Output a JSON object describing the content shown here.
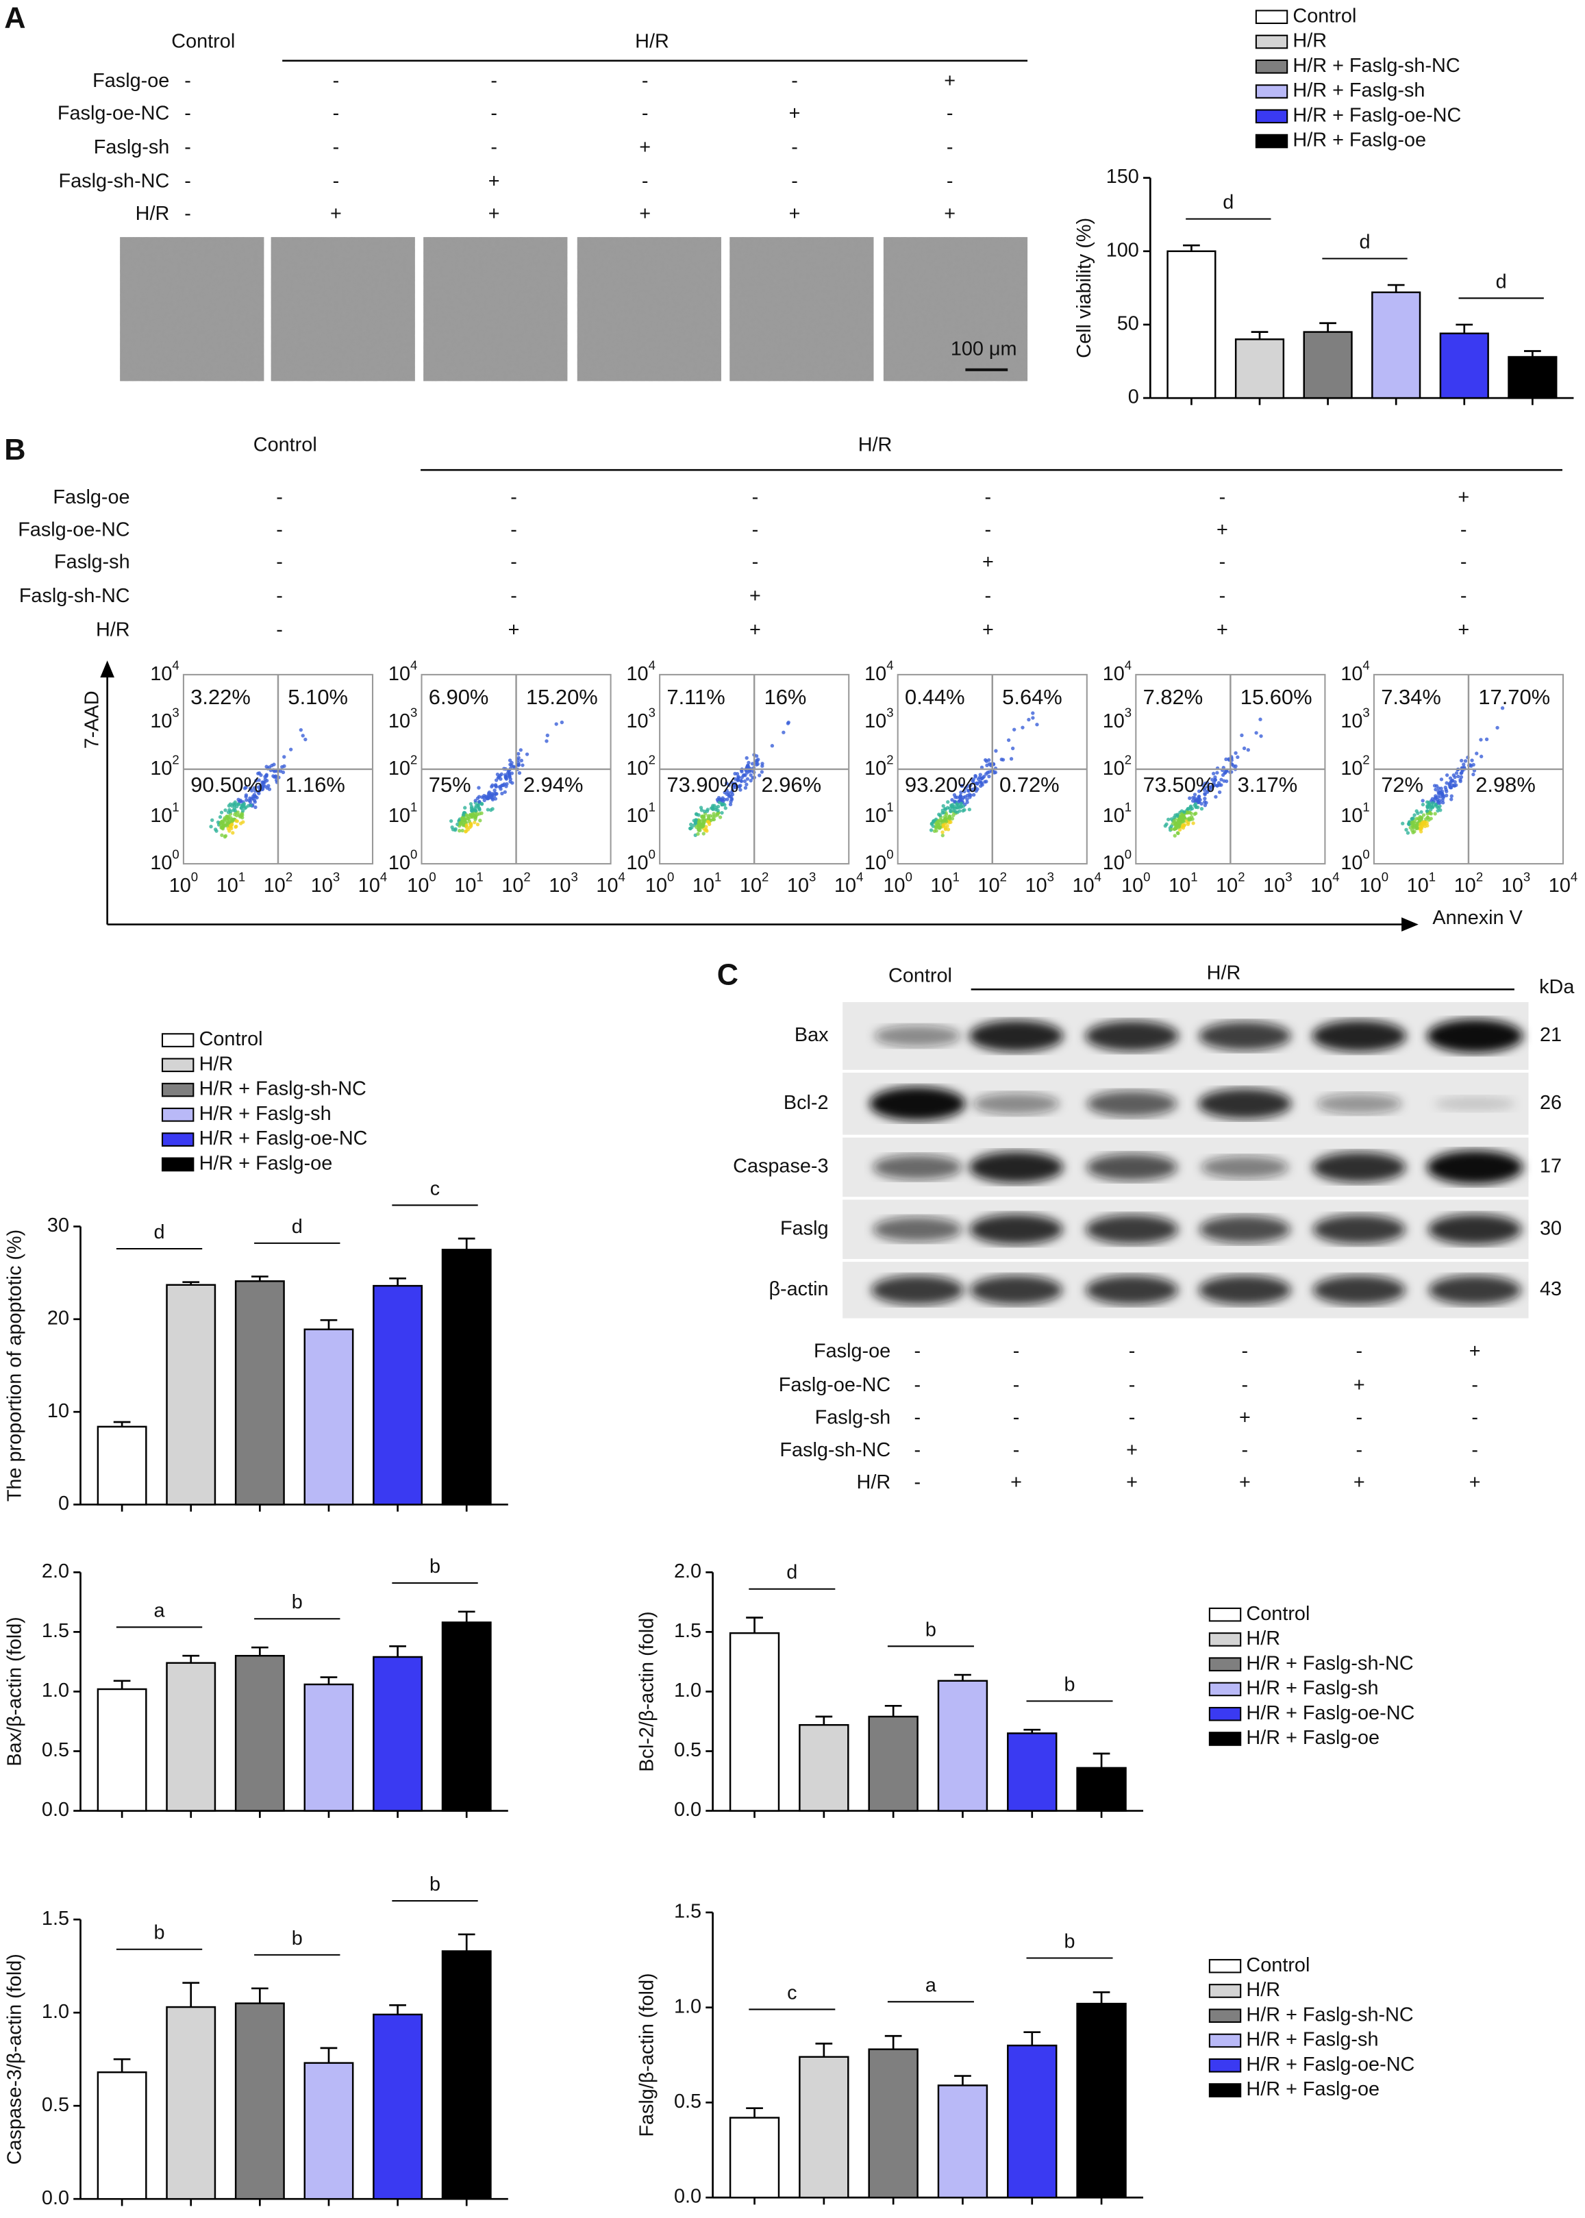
{
  "panel_a": {
    "label": "A",
    "treatment": {
      "groups": [
        "Control",
        "H/R"
      ],
      "rows": [
        {
          "label": "Faslg-oe",
          "signs": [
            "-",
            "-",
            "-",
            "-",
            "-",
            "+"
          ]
        },
        {
          "label": "Faslg-oe-NC",
          "signs": [
            "-",
            "-",
            "-",
            "-",
            "+",
            "-"
          ]
        },
        {
          "label": "Faslg-sh",
          "signs": [
            "-",
            "-",
            "-",
            "+",
            "-",
            "-"
          ]
        },
        {
          "label": "Faslg-sh-NC",
          "signs": [
            "-",
            "-",
            "+",
            "-",
            "-",
            "-"
          ]
        },
        {
          "label": "H/R",
          "signs": [
            "-",
            "+",
            "+",
            "+",
            "+",
            "+"
          ]
        }
      ]
    },
    "scale_bar": "100 μm"
  },
  "panel_b": {
    "label": "B",
    "treatment": {
      "groups": [
        "Control",
        "H/R"
      ],
      "rows": [
        {
          "label": "Faslg-oe",
          "signs": [
            "-",
            "-",
            "-",
            "-",
            "-",
            "+"
          ]
        },
        {
          "label": "Faslg-oe-NC",
          "signs": [
            "-",
            "-",
            "-",
            "-",
            "+",
            "-"
          ]
        },
        {
          "label": "Faslg-sh",
          "signs": [
            "-",
            "-",
            "-",
            "+",
            "-",
            "-"
          ]
        },
        {
          "label": "Faslg-sh-NC",
          "signs": [
            "-",
            "-",
            "+",
            "-",
            "-",
            "-"
          ]
        },
        {
          "label": "H/R",
          "signs": [
            "-",
            "+",
            "+",
            "+",
            "+",
            "+"
          ]
        }
      ]
    },
    "flow": {
      "y_axis": "7-AAD",
      "x_axis": "Annexin V",
      "base": "10",
      "exponents": [
        "0",
        "1",
        "2",
        "3",
        "4"
      ],
      "plots": [
        [
          "3.22%",
          "5.10%",
          "90.50%",
          "1.16%"
        ],
        [
          "6.90%",
          "15.20%",
          "75%",
          "2.94%"
        ],
        [
          "7.11%",
          "16%",
          "73.90%",
          "2.96%"
        ],
        [
          "0.44%",
          "5.64%",
          "93.20%",
          "0.72%"
        ],
        [
          "7.82%",
          "15.60%",
          "73.50%",
          "3.17%"
        ],
        [
          "7.34%",
          "17.70%",
          "72%",
          "2.98%"
        ]
      ]
    }
  },
  "panel_c": {
    "label": "C",
    "groups": [
      "Control",
      "H/R"
    ],
    "unit": "kDa",
    "rows": [
      {
        "label": "Bax",
        "kda": "21"
      },
      {
        "label": "Bcl-2",
        "kda": "26"
      },
      {
        "label": "Caspase-3",
        "kda": "17"
      },
      {
        "label": "Faslg",
        "kda": "30"
      },
      {
        "label": "β-actin",
        "kda": "43"
      }
    ],
    "treatment": {
      "rows": [
        {
          "label": "Faslg-oe",
          "signs": [
            "-",
            "-",
            "-",
            "-",
            "-",
            "+"
          ]
        },
        {
          "label": "Faslg-oe-NC",
          "signs": [
            "-",
            "-",
            "-",
            "-",
            "+",
            "-"
          ]
        },
        {
          "label": "Faslg-sh",
          "signs": [
            "-",
            "-",
            "-",
            "+",
            "-",
            "-"
          ]
        },
        {
          "label": "Faslg-sh-NC",
          "signs": [
            "-",
            "-",
            "+",
            "-",
            "-",
            "-"
          ]
        },
        {
          "label": "H/R",
          "signs": [
            "-",
            "+",
            "+",
            "+",
            "+",
            "+"
          ]
        }
      ]
    }
  },
  "chart_data": [
    {
      "type": "bar",
      "ylabel": "Cell viability (%)",
      "legend": true,
      "categories": [
        "Control",
        "H/R",
        "H/R + Faslg-sh-NC",
        "H/R + Faslg-sh",
        "H/R + Faslg-oe-NC",
        "H/R + Faslg-oe"
      ],
      "colors": [
        "#ffffff",
        "#d4d4d4",
        "#7f7f7f",
        "#b9b9f7",
        "#3a3af2",
        "#000000"
      ],
      "values": [
        100,
        40,
        45,
        72,
        44,
        28
      ],
      "errors": [
        4,
        5,
        6,
        5,
        6,
        4
      ],
      "ylim": [
        0,
        150
      ],
      "yticks": [
        0,
        50,
        100,
        150
      ],
      "brackets": [
        {
          "label": "d",
          "between": [
            0,
            1
          ]
        },
        {
          "label": "d",
          "between": [
            2,
            3
          ]
        },
        {
          "label": "d",
          "between": [
            4,
            5
          ]
        }
      ]
    },
    {
      "type": "bar",
      "ylabel": "The proportion of apoptotic (%)",
      "legend": true,
      "categories": [
        "Control",
        "H/R",
        "H/R + Faslg-sh-NC",
        "H/R + Faslg-sh",
        "H/R + Faslg-oe-NC",
        "H/R + Faslg-oe"
      ],
      "colors": [
        "#ffffff",
        "#d4d4d4",
        "#7f7f7f",
        "#b9b9f7",
        "#3a3af2",
        "#000000"
      ],
      "values": [
        8.4,
        23.7,
        24.1,
        18.9,
        23.6,
        27.5
      ],
      "errors": [
        0.5,
        0.3,
        0.5,
        1,
        0.8,
        1.2
      ],
      "ylim": [
        0,
        30
      ],
      "yticks": [
        0,
        10,
        20,
        30
      ],
      "brackets": [
        {
          "label": "d",
          "between": [
            0,
            1
          ]
        },
        {
          "label": "d",
          "between": [
            2,
            3
          ]
        },
        {
          "label": "c",
          "between": [
            4,
            5
          ]
        }
      ]
    },
    {
      "type": "bar",
      "ylabel": "Bax/β-actin (fold)",
      "colors": [
        "#ffffff",
        "#d4d4d4",
        "#7f7f7f",
        "#b9b9f7",
        "#3a3af2",
        "#000000"
      ],
      "values": [
        1.02,
        1.24,
        1.3,
        1.06,
        1.29,
        1.58
      ],
      "errors": [
        0.07,
        0.06,
        0.07,
        0.06,
        0.09,
        0.09
      ],
      "ylim": [
        0,
        2
      ],
      "yticks": [
        {
          "value": 0,
          "label": "0.0"
        },
        0.5,
        {
          "value": 1,
          "label": "1.0"
        },
        1.5,
        {
          "value": 2,
          "label": "2.0"
        }
      ],
      "brackets": [
        {
          "label": "a",
          "between": [
            0,
            1
          ]
        },
        {
          "label": "b",
          "between": [
            2,
            3
          ]
        },
        {
          "label": "b",
          "between": [
            4,
            5
          ]
        }
      ]
    },
    {
      "type": "bar",
      "ylabel": "Bcl-2/β-actin (fold)",
      "legend": true,
      "categories": [
        "Control",
        "H/R",
        "H/R + Faslg-sh-NC",
        "H/R + Faslg-sh",
        "H/R + Faslg-oe-NC",
        "H/R + Faslg-oe"
      ],
      "colors": [
        "#ffffff",
        "#d4d4d4",
        "#7f7f7f",
        "#b9b9f7",
        "#3a3af2",
        "#000000"
      ],
      "values": [
        1.49,
        0.72,
        0.79,
        1.09,
        0.65,
        0.36
      ],
      "errors": [
        0.13,
        0.07,
        0.09,
        0.05,
        0.03,
        0.12
      ],
      "ylim": [
        0,
        2
      ],
      "yticks": [
        {
          "value": 0,
          "label": "0.0"
        },
        0.5,
        {
          "value": 1,
          "label": "1.0"
        },
        1.5,
        {
          "value": 2,
          "label": "2.0"
        }
      ],
      "brackets": [
        {
          "label": "d",
          "between": [
            0,
            1
          ]
        },
        {
          "label": "b",
          "between": [
            2,
            3
          ]
        },
        {
          "label": "b",
          "between": [
            4,
            5
          ]
        }
      ]
    },
    {
      "type": "bar",
      "ylabel": "Caspase-3/β-actin (fold)",
      "colors": [
        "#ffffff",
        "#d4d4d4",
        "#7f7f7f",
        "#b9b9f7",
        "#3a3af2",
        "#000000"
      ],
      "values": [
        0.68,
        1.03,
        1.05,
        0.73,
        0.99,
        1.33
      ],
      "errors": [
        0.07,
        0.13,
        0.08,
        0.08,
        0.05,
        0.09
      ],
      "ylim": [
        0,
        1.5
      ],
      "yticks": [
        {
          "value": 0,
          "label": "0.0"
        },
        0.5,
        {
          "value": 1,
          "label": "1.0"
        },
        1.5
      ],
      "brackets": [
        {
          "label": "b",
          "between": [
            0,
            1
          ]
        },
        {
          "label": "b",
          "between": [
            2,
            3
          ]
        },
        {
          "label": "b",
          "between": [
            4,
            5
          ]
        }
      ]
    },
    {
      "type": "bar",
      "ylabel": "Faslg/β-actin (fold)",
      "legend": true,
      "categories": [
        "Control",
        "H/R",
        "H/R + Faslg-sh-NC",
        "H/R + Faslg-sh",
        "H/R + Faslg-oe-NC",
        "H/R + Faslg-oe"
      ],
      "colors": [
        "#ffffff",
        "#d4d4d4",
        "#7f7f7f",
        "#b9b9f7",
        "#3a3af2",
        "#000000"
      ],
      "values": [
        0.42,
        0.74,
        0.78,
        0.59,
        0.8,
        1.02
      ],
      "errors": [
        0.05,
        0.07,
        0.07,
        0.05,
        0.07,
        0.06
      ],
      "ylim": [
        0,
        1.5
      ],
      "yticks": [
        {
          "value": 0,
          "label": "0.0"
        },
        0.5,
        {
          "value": 1,
          "label": "1.0"
        },
        1.5
      ],
      "brackets": [
        {
          "label": "c",
          "between": [
            0,
            1
          ]
        },
        {
          "label": "a",
          "between": [
            2,
            3
          ]
        },
        {
          "label": "b",
          "between": [
            4,
            5
          ]
        }
      ]
    }
  ]
}
